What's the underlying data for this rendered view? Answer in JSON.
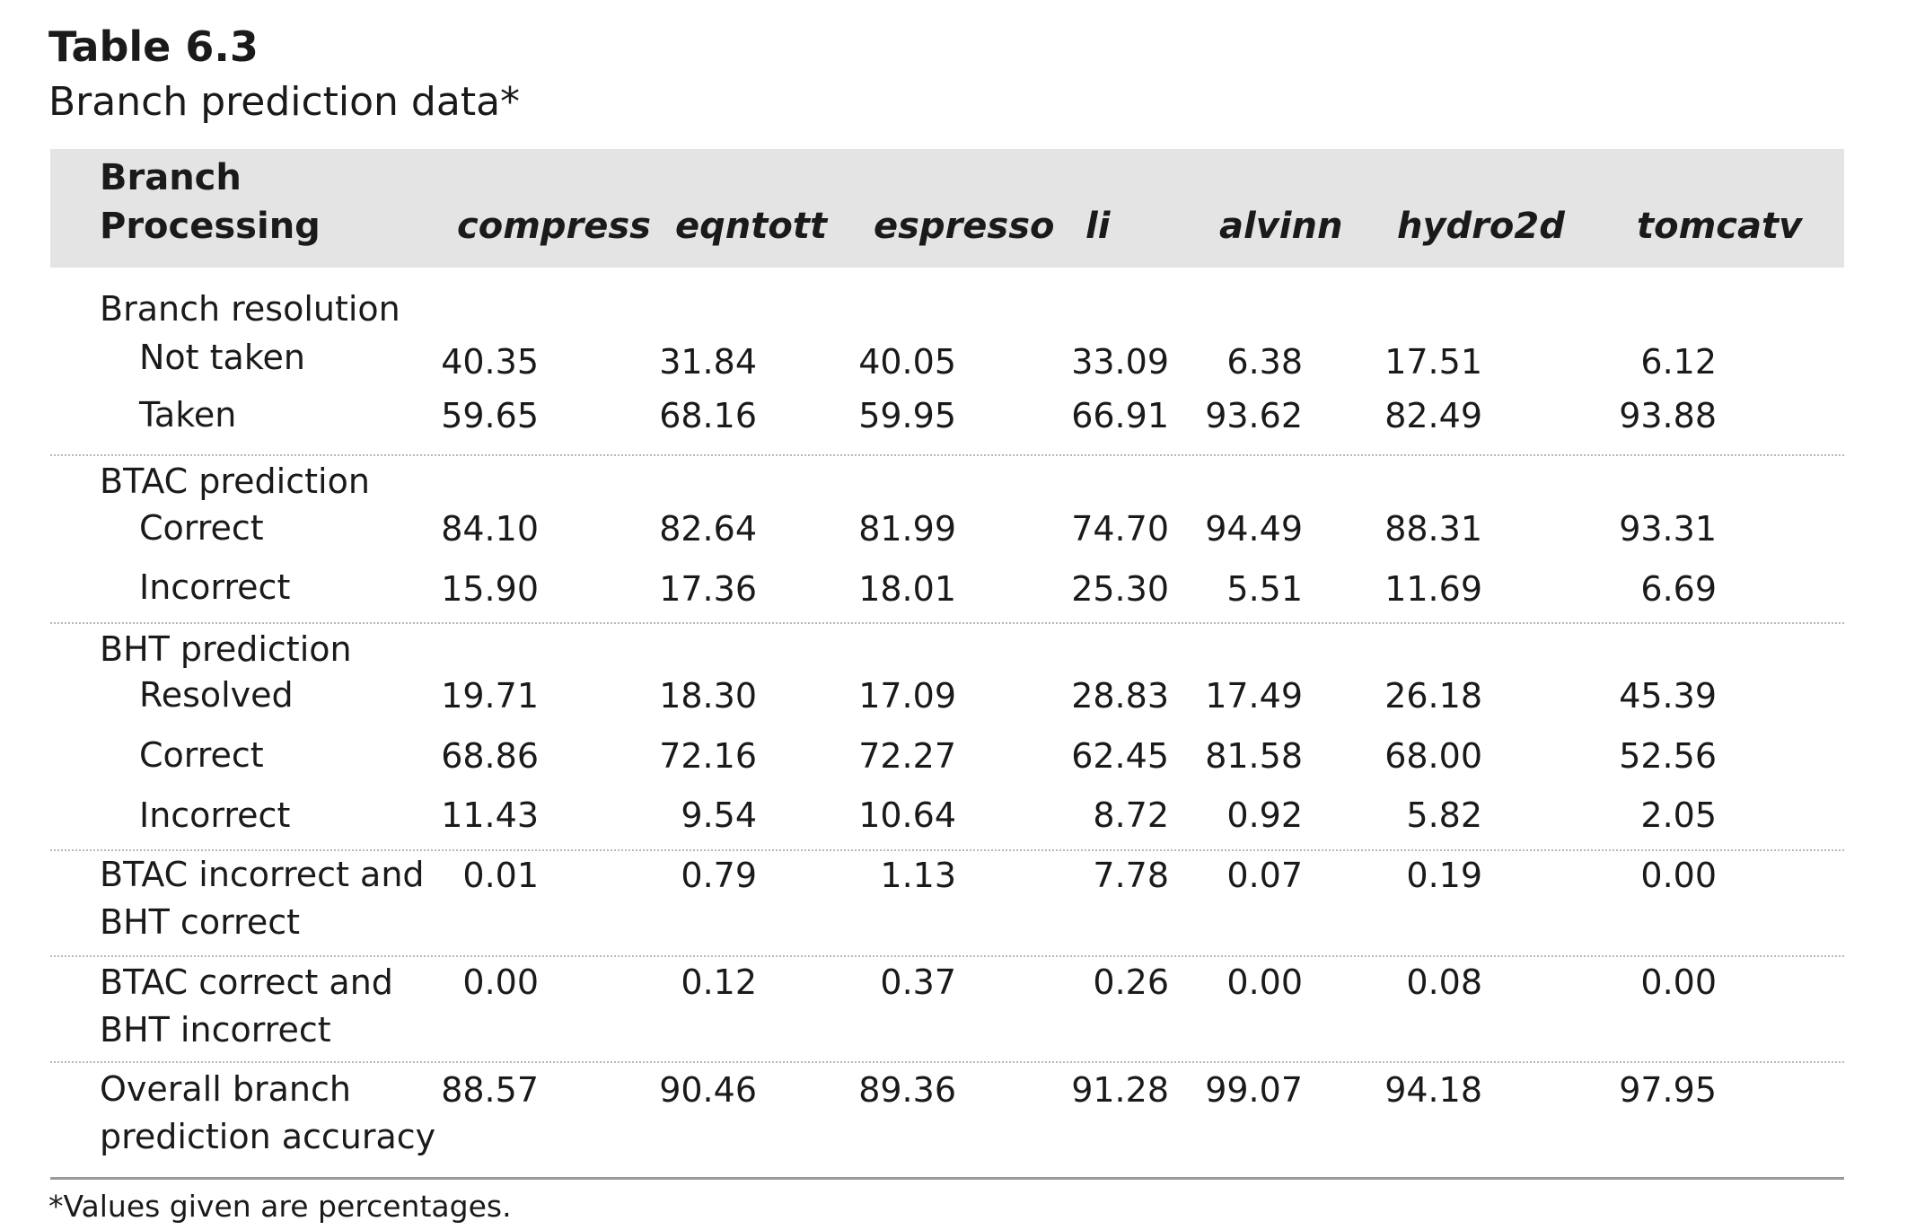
{
  "title": {
    "number": "Table 6.3",
    "caption": "Branch prediction data*"
  },
  "header": {
    "row_label_line1": "Branch",
    "row_label_line2": "Processing",
    "columns": [
      "compress",
      "eqntott",
      "espresso",
      "li",
      "alvinn",
      "hydro2d",
      "tomcatv"
    ]
  },
  "sections": {
    "branch_resolution": {
      "label": "Branch resolution",
      "rows": [
        {
          "label": "Not taken",
          "values": [
            "40.35",
            "31.84",
            "40.05",
            "33.09",
            "6.38",
            "17.51",
            "6.12"
          ]
        },
        {
          "label": "Taken",
          "values": [
            "59.65",
            "68.16",
            "59.95",
            "66.91",
            "93.62",
            "82.49",
            "93.88"
          ]
        }
      ]
    },
    "btac_prediction": {
      "label": "BTAC prediction",
      "rows": [
        {
          "label": "Correct",
          "values": [
            "84.10",
            "82.64",
            "81.99",
            "74.70",
            "94.49",
            "88.31",
            "93.31"
          ]
        },
        {
          "label": "Incorrect",
          "values": [
            "15.90",
            "17.36",
            "18.01",
            "25.30",
            "5.51",
            "11.69",
            "6.69"
          ]
        }
      ]
    },
    "bht_prediction": {
      "label": "BHT prediction",
      "rows": [
        {
          "label": "Resolved",
          "values": [
            "19.71",
            "18.30",
            "17.09",
            "28.83",
            "17.49",
            "26.18",
            "45.39"
          ]
        },
        {
          "label": "Correct",
          "values": [
            "68.86",
            "72.16",
            "72.27",
            "62.45",
            "81.58",
            "68.00",
            "52.56"
          ]
        },
        {
          "label": "Incorrect",
          "values": [
            "11.43",
            "9.54",
            "10.64",
            "8.72",
            "0.92",
            "5.82",
            "2.05"
          ]
        }
      ]
    },
    "btac_incorrect_bht_correct": {
      "label_line1": "BTAC incorrect and",
      "label_line2": "BHT correct",
      "values": [
        "0.01",
        "0.79",
        "1.13",
        "7.78",
        "0.07",
        "0.19",
        "0.00"
      ]
    },
    "btac_correct_bht_incorrect": {
      "label_line1": "BTAC correct and",
      "label_line2": "BHT incorrect",
      "values": [
        "0.00",
        "0.12",
        "0.37",
        "0.26",
        "0.00",
        "0.08",
        "0.00"
      ]
    },
    "overall": {
      "label_line1": "Overall branch",
      "label_line2": "prediction accuracy",
      "values": [
        "88.57",
        "90.46",
        "89.36",
        "91.28",
        "99.07",
        "94.18",
        "97.95"
      ]
    }
  },
  "footnote": "*Values given are percentages."
}
